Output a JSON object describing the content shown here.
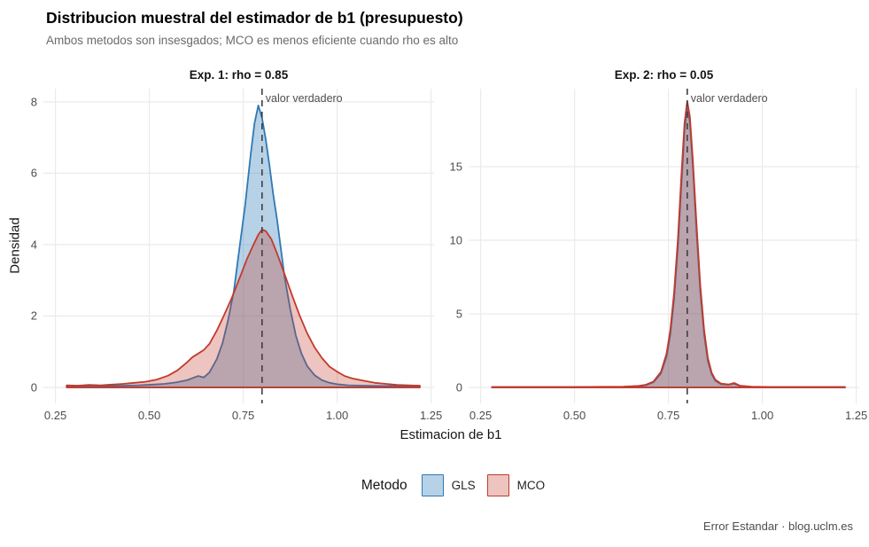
{
  "header": {
    "title": "Distribucion muestral del estimador de b1 (presupuesto)",
    "subtitle": "Ambos metodos son insesgados; MCO es menos eficiente cuando rho es alto"
  },
  "axes": {
    "x_label": "Estimacion de b1",
    "y_label": "Densidad"
  },
  "legend": {
    "title": "Metodo",
    "items": [
      {
        "label": "GLS",
        "stroke": "#2e79b6",
        "fill": "rgba(49,122,183,0.35)"
      },
      {
        "label": "MCO",
        "stroke": "#c23a2c",
        "fill": "rgba(194,58,44,0.30)"
      }
    ]
  },
  "caption": "Error Estandar · blog.uclm.es",
  "colors": {
    "gridline": "#ebebeb",
    "vline": "#3f3f3f",
    "tick_text": "#4d4d4d",
    "subtitle_text": "#6b6b6b"
  },
  "chart_data": {
    "type": "area",
    "title": "Distribucion muestral del estimador de b1 (presupuesto)",
    "subtitle": "Ambos metodos son insesgados; MCO es menos eficiente cuando rho es alto",
    "xlabel": "Estimacion de b1",
    "ylabel": "Densidad",
    "legend_position": "bottom",
    "grid": "major",
    "facets": [
      {
        "strip": "Exp. 1: rho = 0.85",
        "xlim": [
          0.218,
          1.258
        ],
        "ylim": [
          0,
          8.37
        ],
        "x_ticks": [
          {
            "v": 0.25,
            "label": "0.25"
          },
          {
            "v": 0.5,
            "label": "0.50"
          },
          {
            "v": 0.75,
            "label": "0.75"
          },
          {
            "v": 1.0,
            "label": "1.00"
          },
          {
            "v": 1.25,
            "label": "1.25"
          }
        ],
        "y_ticks": [
          {
            "v": 0,
            "label": "0"
          },
          {
            "v": 2,
            "label": "2"
          },
          {
            "v": 4,
            "label": "4"
          },
          {
            "v": 6,
            "label": "6"
          },
          {
            "v": 8,
            "label": "8"
          }
        ],
        "vline": {
          "x": 0.8,
          "label": "valor verdadero"
        },
        "series": [
          {
            "name": "GLS",
            "stroke": "#2e79b6",
            "fill": "rgba(49,122,183,0.35)",
            "points": [
              [
                0.28,
                0.04
              ],
              [
                0.33,
                0.03
              ],
              [
                0.38,
                0.04
              ],
              [
                0.43,
                0.05
              ],
              [
                0.47,
                0.06
              ],
              [
                0.51,
                0.08
              ],
              [
                0.54,
                0.1
              ],
              [
                0.57,
                0.14
              ],
              [
                0.6,
                0.2
              ],
              [
                0.62,
                0.28
              ],
              [
                0.63,
                0.32
              ],
              [
                0.645,
                0.28
              ],
              [
                0.66,
                0.42
              ],
              [
                0.68,
                0.8
              ],
              [
                0.695,
                1.25
              ],
              [
                0.71,
                1.9
              ],
              [
                0.725,
                2.7
              ],
              [
                0.74,
                3.9
              ],
              [
                0.755,
                5.1
              ],
              [
                0.77,
                6.55
              ],
              [
                0.78,
                7.4
              ],
              [
                0.79,
                7.9
              ],
              [
                0.8,
                7.55
              ],
              [
                0.81,
                6.95
              ],
              [
                0.82,
                6.2
              ],
              [
                0.83,
                5.4
              ],
              [
                0.84,
                4.7
              ],
              [
                0.85,
                3.9
              ],
              [
                0.86,
                3.1
              ],
              [
                0.875,
                2.2
              ],
              [
                0.89,
                1.45
              ],
              [
                0.905,
                0.95
              ],
              [
                0.92,
                0.6
              ],
              [
                0.94,
                0.34
              ],
              [
                0.96,
                0.2
              ],
              [
                0.98,
                0.13
              ],
              [
                1.0,
                0.09
              ],
              [
                1.03,
                0.06
              ],
              [
                1.07,
                0.05
              ],
              [
                1.12,
                0.04
              ],
              [
                1.17,
                0.04
              ],
              [
                1.22,
                0.04
              ]
            ]
          },
          {
            "name": "MCO",
            "stroke": "#c23a2c",
            "fill": "rgba(194,58,44,0.30)",
            "points": [
              [
                0.28,
                0.06
              ],
              [
                0.31,
                0.05
              ],
              [
                0.34,
                0.07
              ],
              [
                0.37,
                0.06
              ],
              [
                0.4,
                0.08
              ],
              [
                0.43,
                0.1
              ],
              [
                0.46,
                0.13
              ],
              [
                0.49,
                0.16
              ],
              [
                0.52,
                0.22
              ],
              [
                0.55,
                0.33
              ],
              [
                0.575,
                0.48
              ],
              [
                0.6,
                0.7
              ],
              [
                0.615,
                0.85
              ],
              [
                0.63,
                0.95
              ],
              [
                0.645,
                1.05
              ],
              [
                0.66,
                1.22
              ],
              [
                0.68,
                1.6
              ],
              [
                0.7,
                2.05
              ],
              [
                0.72,
                2.52
              ],
              [
                0.74,
                3.05
              ],
              [
                0.76,
                3.6
              ],
              [
                0.775,
                3.95
              ],
              [
                0.79,
                4.28
              ],
              [
                0.8,
                4.42
              ],
              [
                0.81,
                4.38
              ],
              [
                0.825,
                4.15
              ],
              [
                0.84,
                3.75
              ],
              [
                0.86,
                3.18
              ],
              [
                0.88,
                2.58
              ],
              [
                0.9,
                2.02
              ],
              [
                0.92,
                1.52
              ],
              [
                0.94,
                1.12
              ],
              [
                0.96,
                0.82
              ],
              [
                0.98,
                0.58
              ],
              [
                1.0,
                0.44
              ],
              [
                1.02,
                0.32
              ],
              [
                1.04,
                0.25
              ],
              [
                1.07,
                0.19
              ],
              [
                1.1,
                0.13
              ],
              [
                1.13,
                0.1
              ],
              [
                1.16,
                0.07
              ],
              [
                1.19,
                0.06
              ],
              [
                1.22,
                0.05
              ]
            ]
          }
        ]
      },
      {
        "strip": "Exp. 2: rho = 0.05",
        "xlim": [
          0.218,
          1.258
        ],
        "ylim": [
          0,
          20.3
        ],
        "x_ticks": [
          {
            "v": 0.25,
            "label": "0.25"
          },
          {
            "v": 0.5,
            "label": "0.50"
          },
          {
            "v": 0.75,
            "label": "0.75"
          },
          {
            "v": 1.0,
            "label": "1.00"
          },
          {
            "v": 1.25,
            "label": "1.25"
          }
        ],
        "y_ticks": [
          {
            "v": 0,
            "label": "0"
          },
          {
            "v": 5,
            "label": "5"
          },
          {
            "v": 10,
            "label": "10"
          },
          {
            "v": 15,
            "label": "15"
          }
        ],
        "vline": {
          "x": 0.8,
          "label": "valor verdadero"
        },
        "series": [
          {
            "name": "GLS",
            "stroke": "#2e79b6",
            "fill": "rgba(49,122,183,0.35)",
            "points": [
              [
                0.28,
                0.02
              ],
              [
                0.35,
                0.02
              ],
              [
                0.42,
                0.02
              ],
              [
                0.5,
                0.02
              ],
              [
                0.58,
                0.03
              ],
              [
                0.63,
                0.04
              ],
              [
                0.67,
                0.08
              ],
              [
                0.69,
                0.15
              ],
              [
                0.71,
                0.35
              ],
              [
                0.73,
                0.95
              ],
              [
                0.745,
                2.1
              ],
              [
                0.755,
                3.6
              ],
              [
                0.765,
                6.0
              ],
              [
                0.775,
                9.5
              ],
              [
                0.785,
                14.0
              ],
              [
                0.793,
                17.5
              ],
              [
                0.8,
                19.2
              ],
              [
                0.807,
                18.0
              ],
              [
                0.815,
                15.0
              ],
              [
                0.825,
                10.5
              ],
              [
                0.835,
                6.5
              ],
              [
                0.845,
                3.6
              ],
              [
                0.855,
                1.8
              ],
              [
                0.865,
                0.9
              ],
              [
                0.875,
                0.45
              ],
              [
                0.89,
                0.22
              ],
              [
                0.91,
                0.18
              ],
              [
                0.925,
                0.25
              ],
              [
                0.94,
                0.1
              ],
              [
                0.97,
                0.04
              ],
              [
                1.02,
                0.02
              ],
              [
                1.1,
                0.02
              ],
              [
                1.22,
                0.02
              ]
            ]
          },
          {
            "name": "MCO",
            "stroke": "#c23a2c",
            "fill": "rgba(194,58,44,0.30)",
            "points": [
              [
                0.28,
                0.03
              ],
              [
                0.35,
                0.03
              ],
              [
                0.42,
                0.03
              ],
              [
                0.5,
                0.03
              ],
              [
                0.58,
                0.04
              ],
              [
                0.63,
                0.05
              ],
              [
                0.67,
                0.1
              ],
              [
                0.69,
                0.18
              ],
              [
                0.71,
                0.4
              ],
              [
                0.73,
                1.05
              ],
              [
                0.745,
                2.3
              ],
              [
                0.755,
                3.9
              ],
              [
                0.765,
                6.4
              ],
              [
                0.775,
                10.0
              ],
              [
                0.785,
                14.6
              ],
              [
                0.793,
                18.0
              ],
              [
                0.8,
                19.45
              ],
              [
                0.807,
                18.4
              ],
              [
                0.815,
                15.4
              ],
              [
                0.825,
                11.0
              ],
              [
                0.835,
                6.9
              ],
              [
                0.845,
                3.9
              ],
              [
                0.855,
                2.0
              ],
              [
                0.865,
                1.0
              ],
              [
                0.875,
                0.52
              ],
              [
                0.89,
                0.26
              ],
              [
                0.91,
                0.2
              ],
              [
                0.925,
                0.3
              ],
              [
                0.94,
                0.12
              ],
              [
                0.97,
                0.05
              ],
              [
                1.02,
                0.03
              ],
              [
                1.1,
                0.03
              ],
              [
                1.22,
                0.03
              ]
            ]
          }
        ]
      }
    ]
  }
}
